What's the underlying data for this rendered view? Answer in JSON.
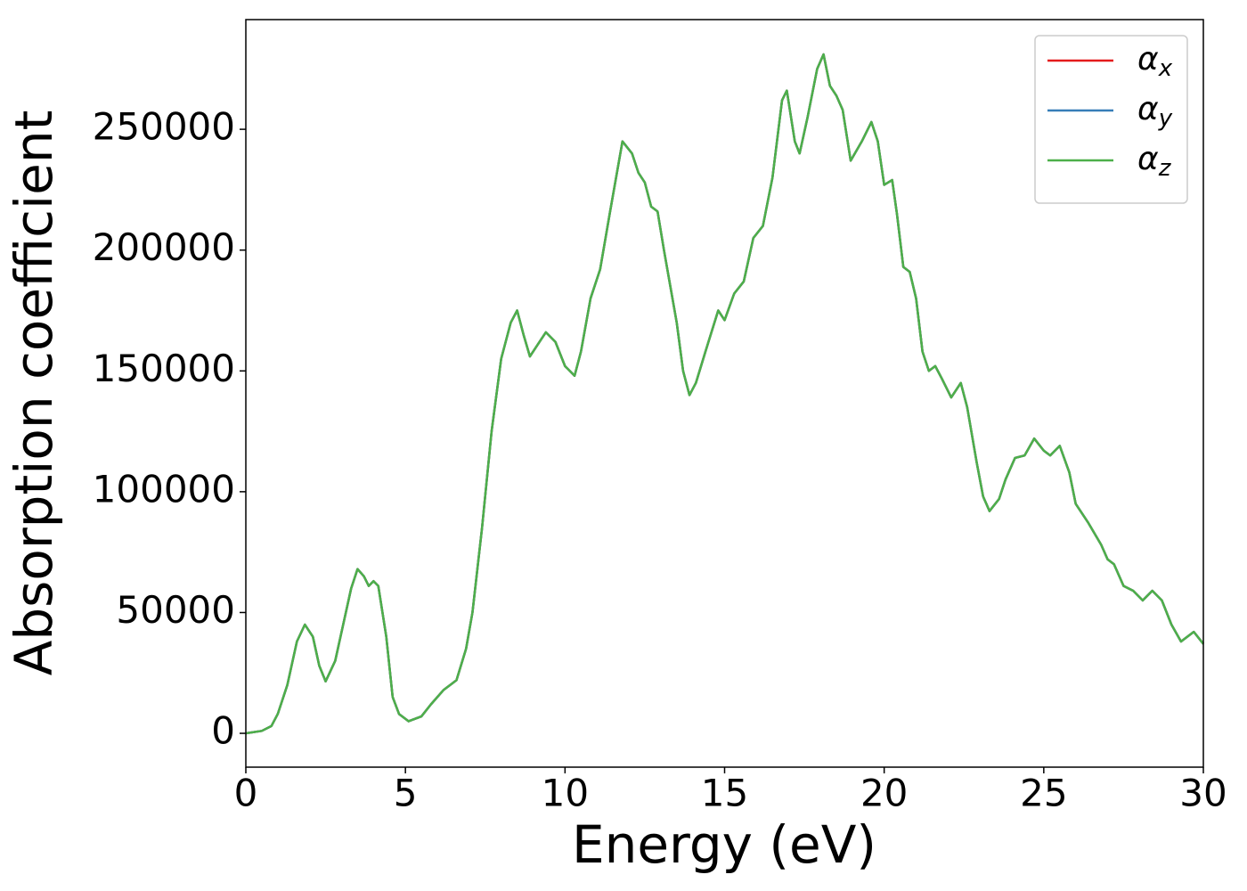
{
  "chart_data": {
    "type": "line",
    "xlabel": "Energy (eV)",
    "ylabel": "Absorption coefficient",
    "x": [
      0,
      0.5,
      0.8,
      1.0,
      1.3,
      1.6,
      1.85,
      2.1,
      2.3,
      2.5,
      2.8,
      3.1,
      3.3,
      3.5,
      3.7,
      3.85,
      4.0,
      4.15,
      4.4,
      4.6,
      4.8,
      5.1,
      5.5,
      5.8,
      6.2,
      6.6,
      6.9,
      7.1,
      7.4,
      7.7,
      8.0,
      8.3,
      8.5,
      8.7,
      8.9,
      9.1,
      9.4,
      9.7,
      10.0,
      10.3,
      10.5,
      10.8,
      11.1,
      11.4,
      11.8,
      12.1,
      12.3,
      12.5,
      12.7,
      12.9,
      13.1,
      13.3,
      13.5,
      13.7,
      13.9,
      14.1,
      14.4,
      14.8,
      15.0,
      15.3,
      15.6,
      15.9,
      16.2,
      16.5,
      16.8,
      16.95,
      17.2,
      17.35,
      17.6,
      17.9,
      18.1,
      18.3,
      18.5,
      18.7,
      18.95,
      19.3,
      19.6,
      19.8,
      20.0,
      20.25,
      20.4,
      20.6,
      20.8,
      21.0,
      21.2,
      21.4,
      21.6,
      21.8,
      22.1,
      22.4,
      22.6,
      22.9,
      23.1,
      23.3,
      23.6,
      23.8,
      24.1,
      24.4,
      24.7,
      25.0,
      25.2,
      25.5,
      25.8,
      26.0,
      26.4,
      26.8,
      27.0,
      27.2,
      27.5,
      27.8,
      28.1,
      28.4,
      28.7,
      29.0,
      29.3,
      29.7,
      30.0
    ],
    "series": [
      {
        "name": "αx",
        "color": "#e41a1c",
        "values": [
          0,
          1000,
          3000,
          8000,
          20000,
          38000,
          45000,
          40000,
          28000,
          21500,
          30000,
          48000,
          60000,
          68000,
          65000,
          61000,
          63000,
          61000,
          40000,
          15000,
          8000,
          5000,
          7000,
          12000,
          18000,
          22000,
          35000,
          50000,
          85000,
          125000,
          155000,
          170000,
          175000,
          165000,
          156000,
          160000,
          166000,
          162000,
          152000,
          148000,
          158000,
          180000,
          192000,
          215000,
          245000,
          240000,
          232000,
          228000,
          218000,
          216000,
          200000,
          185000,
          170000,
          150000,
          140000,
          145000,
          158000,
          175000,
          171000,
          182000,
          187000,
          205000,
          210000,
          230000,
          262000,
          266000,
          245000,
          240000,
          255000,
          275000,
          281000,
          268000,
          264000,
          258000,
          237000,
          245000,
          253000,
          245000,
          227000,
          229000,
          215000,
          193000,
          191000,
          180000,
          158000,
          150000,
          152000,
          147000,
          139000,
          145000,
          135000,
          112000,
          98000,
          92000,
          97000,
          105000,
          114000,
          115000,
          122000,
          117000,
          115000,
          119000,
          108000,
          95000,
          87000,
          78000,
          72000,
          70000,
          61000,
          59000,
          55000,
          59000,
          55000,
          45000,
          38000,
          42000,
          37000
        ]
      },
      {
        "name": "αy",
        "color": "#377eb8",
        "values": [
          0,
          1000,
          3000,
          8000,
          20000,
          38000,
          45000,
          40000,
          28000,
          21500,
          30000,
          48000,
          60000,
          68000,
          65000,
          61000,
          63000,
          61000,
          40000,
          15000,
          8000,
          5000,
          7000,
          12000,
          18000,
          22000,
          35000,
          50000,
          85000,
          125000,
          155000,
          170000,
          175000,
          165000,
          156000,
          160000,
          166000,
          162000,
          152000,
          148000,
          158000,
          180000,
          192000,
          215000,
          245000,
          240000,
          232000,
          228000,
          218000,
          216000,
          200000,
          185000,
          170000,
          150000,
          140000,
          145000,
          158000,
          175000,
          171000,
          182000,
          187000,
          205000,
          210000,
          230000,
          262000,
          266000,
          245000,
          240000,
          255000,
          275000,
          281000,
          268000,
          264000,
          258000,
          237000,
          245000,
          253000,
          245000,
          227000,
          229000,
          215000,
          193000,
          191000,
          180000,
          158000,
          150000,
          152000,
          147000,
          139000,
          145000,
          135000,
          112000,
          98000,
          92000,
          97000,
          105000,
          114000,
          115000,
          122000,
          117000,
          115000,
          119000,
          108000,
          95000,
          87000,
          78000,
          72000,
          70000,
          61000,
          59000,
          55000,
          59000,
          55000,
          45000,
          38000,
          42000,
          37000
        ]
      },
      {
        "name": "αz",
        "color": "#4daf4a",
        "values": [
          0,
          1000,
          3000,
          8000,
          20000,
          38000,
          45000,
          40000,
          28000,
          21500,
          30000,
          48000,
          60000,
          68000,
          65000,
          61000,
          63000,
          61000,
          40000,
          15000,
          8000,
          5000,
          7000,
          12000,
          18000,
          22000,
          35000,
          50000,
          85000,
          125000,
          155000,
          170000,
          175000,
          165000,
          156000,
          160000,
          166000,
          162000,
          152000,
          148000,
          158000,
          180000,
          192000,
          215000,
          245000,
          240000,
          232000,
          228000,
          218000,
          216000,
          200000,
          185000,
          170000,
          150000,
          140000,
          145000,
          158000,
          175000,
          171000,
          182000,
          187000,
          205000,
          210000,
          230000,
          262000,
          266000,
          245000,
          240000,
          255000,
          275000,
          281000,
          268000,
          264000,
          258000,
          237000,
          245000,
          253000,
          245000,
          227000,
          229000,
          215000,
          193000,
          191000,
          180000,
          158000,
          150000,
          152000,
          147000,
          139000,
          145000,
          135000,
          112000,
          98000,
          92000,
          97000,
          105000,
          114000,
          115000,
          122000,
          117000,
          115000,
          119000,
          108000,
          95000,
          87000,
          78000,
          72000,
          70000,
          61000,
          59000,
          55000,
          59000,
          55000,
          45000,
          38000,
          42000,
          37000
        ]
      }
    ],
    "xlim": [
      0,
      30
    ],
    "xticks": [
      0,
      5,
      10,
      15,
      20,
      25,
      30
    ],
    "ylim": [
      -14000,
      295400
    ],
    "yticks": [
      0,
      50000,
      100000,
      150000,
      200000,
      250000
    ],
    "legend": "upper right",
    "grid": false
  }
}
